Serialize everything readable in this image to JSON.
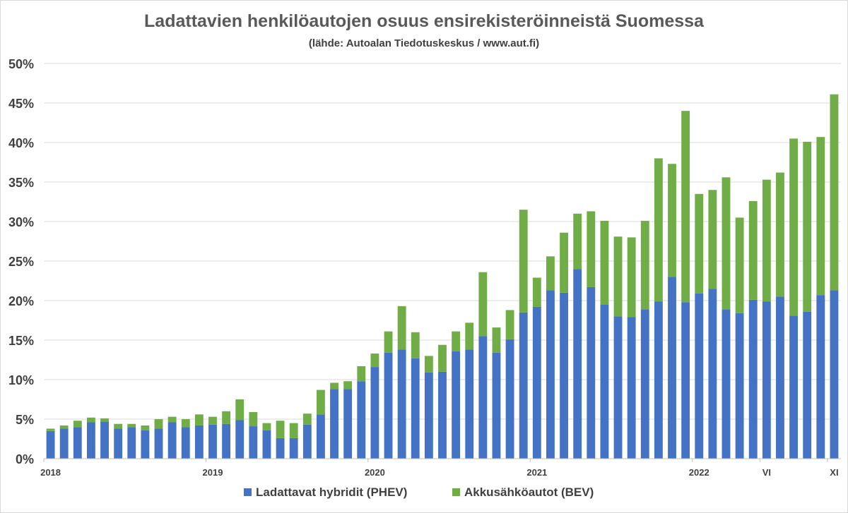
{
  "chart_data": {
    "type": "bar",
    "stacked": true,
    "title": "Ladattavien henkilöautojen osuus ensirekisteröinneistä Suomessa",
    "subtitle": "(lähde: Autoalan Tiedotuskeskus / www.aut.fi)",
    "xlabel": "",
    "ylabel": "",
    "ylim": [
      0,
      50
    ],
    "y_ticks": [
      "0%",
      "5%",
      "10%",
      "15%",
      "20%",
      "25%",
      "30%",
      "35%",
      "40%",
      "45%",
      "50%"
    ],
    "y_tick_values": [
      0,
      5,
      10,
      15,
      20,
      25,
      30,
      35,
      40,
      45,
      50
    ],
    "grid": true,
    "legend_position": "bottom",
    "x_tick_labels": [
      {
        "index": 0,
        "label": "2018"
      },
      {
        "index": 12,
        "label": "2019"
      },
      {
        "index": 24,
        "label": "2020"
      },
      {
        "index": 36,
        "label": "2021"
      },
      {
        "index": 48,
        "label": "2022"
      },
      {
        "index": 53,
        "label": "VI"
      },
      {
        "index": 58,
        "label": "XI"
      }
    ],
    "series": [
      {
        "name": "Ladattavat hybridit (PHEV)",
        "color": "#4472C4",
        "values": [
          3.5,
          3.8,
          4.0,
          4.6,
          4.7,
          3.8,
          4.0,
          3.6,
          3.8,
          4.6,
          4.0,
          4.2,
          4.3,
          4.4,
          4.9,
          4.1,
          3.6,
          2.6,
          2.6,
          4.3,
          5.6,
          8.8,
          8.8,
          9.8,
          11.6,
          13.4,
          13.8,
          12.7,
          10.9,
          11.0,
          13.6,
          13.8,
          15.5,
          13.4,
          15.1,
          18.5,
          19.2,
          21.3,
          21.0,
          24.0,
          21.7,
          19.5,
          18.0,
          17.9,
          18.9,
          19.9,
          23.0,
          19.8,
          20.9,
          21.5,
          18.9,
          18.4,
          20.1,
          19.9,
          20.5,
          18.1,
          18.6,
          20.7,
          21.3
        ]
      },
      {
        "name": "Akkusähköautot (BEV)",
        "color": "#70AD47",
        "values": [
          0.3,
          0.4,
          0.8,
          0.6,
          0.4,
          0.6,
          0.4,
          0.6,
          1.2,
          0.7,
          1.0,
          1.4,
          1.0,
          1.6,
          2.6,
          1.8,
          0.9,
          2.2,
          1.9,
          1.4,
          3.1,
          0.8,
          1.0,
          1.9,
          1.7,
          2.7,
          5.5,
          3.3,
          2.1,
          3.4,
          2.5,
          3.4,
          8.1,
          3.2,
          3.7,
          13.0,
          3.7,
          4.3,
          7.6,
          7.0,
          9.6,
          10.6,
          10.1,
          10.1,
          11.2,
          18.1,
          14.3,
          24.2,
          12.6,
          12.5,
          16.7,
          12.1,
          12.5,
          15.4,
          15.7,
          22.4,
          21.5,
          20.0,
          24.8
        ]
      }
    ]
  }
}
